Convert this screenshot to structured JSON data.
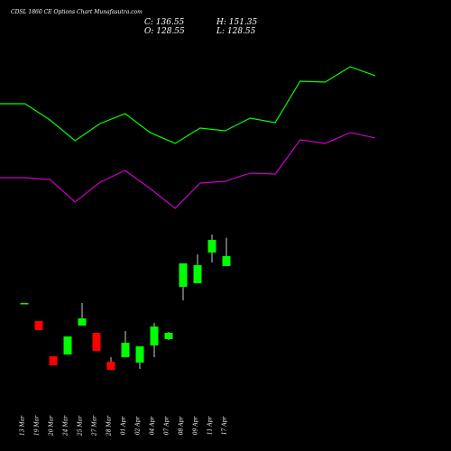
{
  "chart_data": [
    {
      "type": "candlestick",
      "title": "CDSL 1860 CE Options Chart Munafasutra.com",
      "annotations": [
        "C: 136.55",
        "H: 151.35",
        "O: 128.55",
        "L: 128.55"
      ],
      "categories": [
        "13 Mar",
        "19 Mar",
        "20 Mar",
        "24 Mar",
        "25 Mar",
        "27 Mar",
        "28 Mar",
        "01 Apr",
        "02 Apr",
        "04 Apr",
        "07 Apr",
        "08 Apr",
        "09 Apr",
        "11 Apr",
        "17 Apr"
      ],
      "open": [
        98.74,
        84.2,
        55.85,
        57.3,
        80.57,
        74.75,
        51.49,
        55.12,
        50.76,
        64.57,
        69.66,
        111.83,
        114.74,
        139.46,
        128.55
      ],
      "high": [
        98.74,
        84.2,
        55.85,
        71.84,
        98.74,
        74.75,
        55.12,
        76.21,
        63.85,
        82.75,
        75.48,
        130.73,
        138.0,
        154.0,
        151.35
      ],
      "low": [
        98.74,
        76.93,
        48.58,
        57.3,
        80.57,
        60.21,
        44.95,
        55.12,
        45.67,
        55.12,
        68.93,
        100.92,
        114.74,
        131.46,
        128.55
      ],
      "close": [
        98.74,
        76.93,
        48.58,
        71.84,
        86.38,
        60.21,
        44.95,
        66.75,
        63.85,
        79.84,
        74.75,
        130.73,
        129.28,
        149.63,
        136.55
      ],
      "up_color": "#00ff00",
      "down_color": "#ff0000",
      "ylim": [
        -20.5,
        343
      ]
    },
    {
      "type": "line",
      "categories": [
        null,
        null,
        null,
        null,
        null,
        null,
        null,
        null,
        null,
        null,
        null,
        null,
        null,
        null,
        null,
        null
      ],
      "series": [
        {
          "color": "#00ff00",
          "values": [
            259.41,
            259.41,
            246.32,
            229.6,
            243.42,
            251.41,
            236.15,
            227.42,
            239.78,
            237.6,
            247.78,
            244.14,
            277.59,
            276.86,
            289.22,
            281.95
          ]
        },
        {
          "color": "#cc00cc",
          "values": [
            199.8,
            199.8,
            198.34,
            180.17,
            196.16,
            205.61,
            191.07,
            175.08,
            195.43,
            196.89,
            203.43,
            202.71,
            230.33,
            227.42,
            236.15,
            231.79
          ]
        }
      ],
      "ylim": [
        -20.5,
        343
      ]
    }
  ]
}
